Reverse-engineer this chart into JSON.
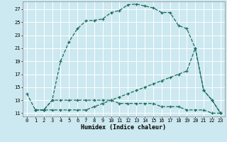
{
  "title": "",
  "xlabel": "Humidex (Indice chaleur)",
  "background_color": "#cce8f0",
  "grid_color": "#ffffff",
  "line_color": "#1a6b5a",
  "xlim": [
    -0.5,
    23.5
  ],
  "ylim": [
    10.5,
    28.2
  ],
  "xticks": [
    0,
    1,
    2,
    3,
    4,
    5,
    6,
    7,
    8,
    9,
    10,
    11,
    12,
    13,
    14,
    15,
    16,
    17,
    18,
    19,
    20,
    21,
    22,
    23
  ],
  "yticks": [
    11,
    13,
    15,
    17,
    19,
    21,
    23,
    25,
    27
  ],
  "series1_x": [
    0,
    1,
    2,
    3,
    4,
    5,
    6,
    7,
    8,
    9,
    10,
    11,
    12,
    13,
    14,
    15,
    16,
    17,
    18,
    19,
    20,
    21,
    22,
    23
  ],
  "series1_y": [
    14,
    11.5,
    11.5,
    13,
    13,
    13,
    13,
    13,
    13,
    13,
    13,
    12.5,
    12.5,
    12.5,
    12.5,
    12.5,
    12,
    12,
    12,
    11.5,
    11.5,
    11.5,
    11,
    11
  ],
  "series2_x": [
    1,
    2,
    3,
    4,
    5,
    6,
    7,
    8,
    9,
    10,
    11,
    12,
    13,
    14,
    15,
    16,
    17,
    18,
    19,
    20,
    21,
    22,
    23
  ],
  "series2_y": [
    11.5,
    11.5,
    13,
    19,
    22,
    24,
    25.2,
    25.3,
    25.5,
    26.5,
    26.8,
    27.7,
    27.8,
    27.5,
    27.2,
    26.5,
    26.5,
    24.5,
    24,
    21,
    14.5,
    13,
    11
  ],
  "series3_x": [
    1,
    2,
    3,
    4,
    5,
    6,
    7,
    8,
    9,
    10,
    11,
    12,
    13,
    14,
    15,
    16,
    17,
    18,
    19,
    20,
    21,
    22,
    23
  ],
  "series3_y": [
    11.5,
    11.5,
    11.5,
    11.5,
    11.5,
    11.5,
    11.5,
    12,
    12.5,
    13,
    13.5,
    14,
    14.5,
    15,
    15.5,
    16,
    16.5,
    17,
    17.5,
    21,
    14.5,
    13,
    11
  ]
}
